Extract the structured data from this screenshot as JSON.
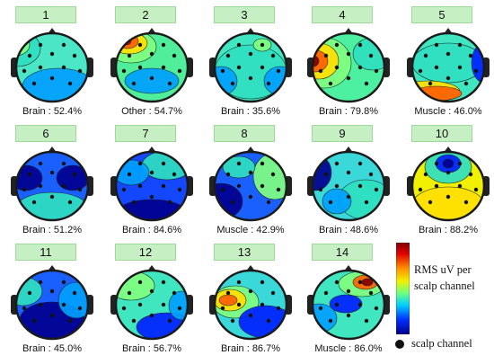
{
  "components": [
    {
      "number": "1",
      "label": "Brain : 52.4%"
    },
    {
      "number": "2",
      "label": "Other : 54.7%"
    },
    {
      "number": "3",
      "label": "Brain : 35.6%"
    },
    {
      "number": "4",
      "label": "Brain : 79.8%"
    },
    {
      "number": "5",
      "label": "Muscle : 46.0%"
    },
    {
      "number": "6",
      "label": "Brain : 51.2%"
    },
    {
      "number": "7",
      "label": "Brain : 84.6%"
    },
    {
      "number": "8",
      "label": "Muscle : 42.9%"
    },
    {
      "number": "9",
      "label": "Brain : 48.6%"
    },
    {
      "number": "10",
      "label": "Brain : 88.2%"
    },
    {
      "number": "11",
      "label": "Brain : 45.0%"
    },
    {
      "number": "12",
      "label": "Brain : 56.7%"
    },
    {
      "number": "13",
      "label": "Brain : 86.7%"
    },
    {
      "number": "14",
      "label": "Muscle : 86.0%"
    }
  ],
  "legend": {
    "colorbar_line1": "RMS uV per",
    "colorbar_line2": "scalp channel",
    "channel_marker_label": "scalp channel"
  },
  "colormap": [
    "#00008f",
    "#0020ff",
    "#00a0ff",
    "#2fe0c0",
    "#80ff80",
    "#ffe000",
    "#ff6000",
    "#c00000",
    "#800000"
  ]
}
